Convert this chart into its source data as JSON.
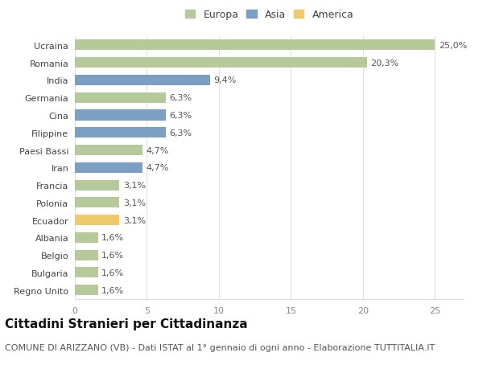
{
  "countries": [
    "Ucraina",
    "Romania",
    "India",
    "Germania",
    "Cina",
    "Filippine",
    "Paesi Bassi",
    "Iran",
    "Francia",
    "Polonia",
    "Ecuador",
    "Albania",
    "Belgio",
    "Bulgaria",
    "Regno Unito"
  ],
  "values": [
    25.0,
    20.3,
    9.4,
    6.3,
    6.3,
    6.3,
    4.7,
    4.7,
    3.1,
    3.1,
    3.1,
    1.6,
    1.6,
    1.6,
    1.6
  ],
  "labels": [
    "25,0%",
    "20,3%",
    "9,4%",
    "6,3%",
    "6,3%",
    "6,3%",
    "4,7%",
    "4,7%",
    "3,1%",
    "3,1%",
    "3,1%",
    "1,6%",
    "1,6%",
    "1,6%",
    "1,6%"
  ],
  "continents": [
    "Europa",
    "Europa",
    "Asia",
    "Europa",
    "Asia",
    "Asia",
    "Europa",
    "Asia",
    "Europa",
    "Europa",
    "America",
    "Europa",
    "Europa",
    "Europa",
    "Europa"
  ],
  "colors": {
    "Asia": "#7a9fc2",
    "America": "#f0c96a"
  },
  "europa_color": "#b5c99a",
  "asia_color": "#7a9fc2",
  "america_color": "#f0c96a",
  "legend_items": [
    "Europa",
    "Asia",
    "America"
  ],
  "title": "Cittadini Stranieri per Cittadinanza",
  "subtitle": "COMUNE DI ARIZZANO (VB) - Dati ISTAT al 1° gennaio di ogni anno - Elaborazione TUTTITALIA.IT",
  "xlim": [
    0,
    27
  ],
  "xticks": [
    0,
    5,
    10,
    15,
    20,
    25
  ],
  "bg_color": "#ffffff",
  "grid_color": "#e0e0e0",
  "bar_height": 0.6,
  "label_fontsize": 8,
  "title_fontsize": 11,
  "subtitle_fontsize": 8,
  "tick_fontsize": 8,
  "legend_fontsize": 9
}
